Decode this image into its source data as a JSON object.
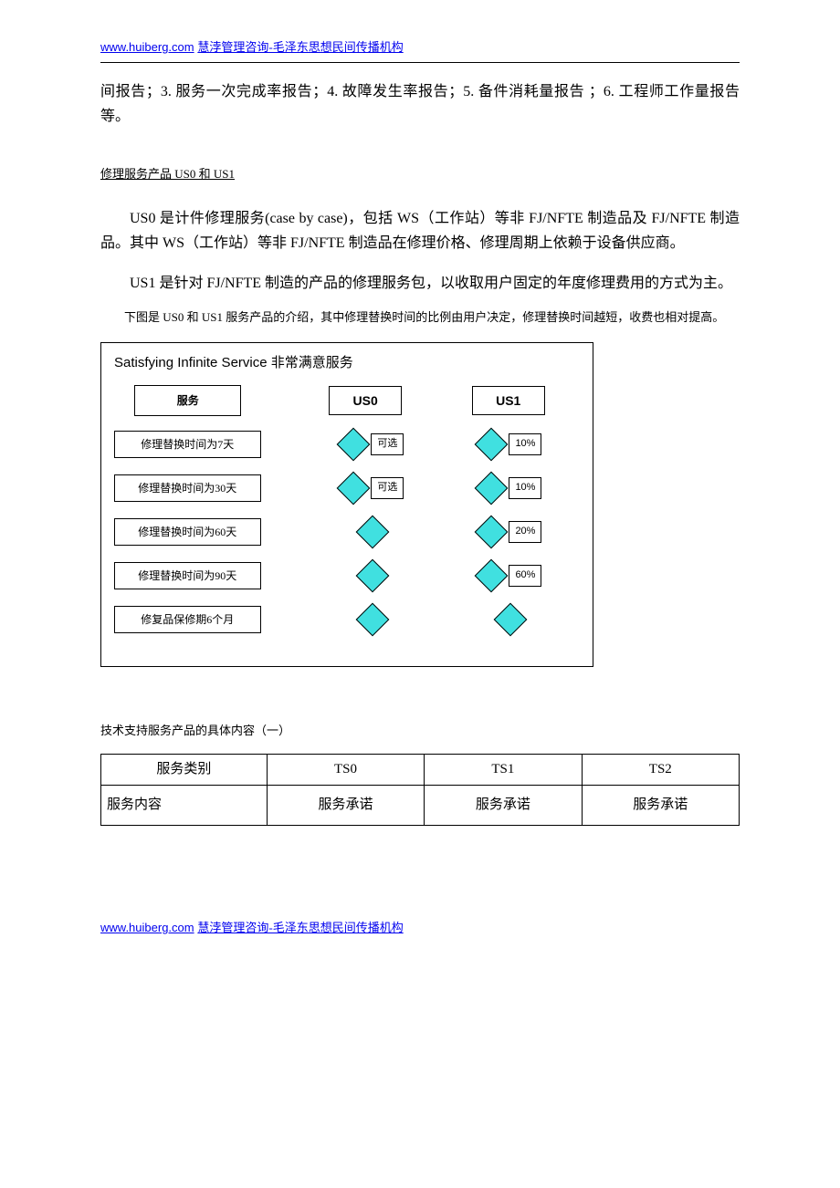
{
  "header": {
    "url": "www.huiberg.com",
    "org": "慧浡管理咨询-毛泽东思想民间传播机构"
  },
  "para1": "间报告；3. 服务一次完成率报告；4. 故障发生率报告；5. 备件消耗量报告 ；6. 工程师工作量报告等。",
  "section_sub": "修理服务产品 US0 和 US1",
  "para2": "US0 是计件修理服务(case by case)，包括 WS（工作站）等非 FJ/NFTE 制造品及 FJ/NFTE 制造品。其中 WS（工作站）等非 FJ/NFTE 制造品在修理价格、修理周期上依赖于设备供应商。",
  "para3": "US1 是针对 FJ/NFTE 制造的产品的修理服务包，以收取用户固定的年度修理费用的方式为主。",
  "note": "下图是 US0 和 US1 服务产品的介绍，其中修理替换时间的比例由用户决定，修理替换时间越短，收费也相对提高。",
  "diagram": {
    "title": "Satisfying Infinite Service   非常满意服务",
    "head_service": "服务",
    "head_col1": "US0",
    "head_col2": "US1",
    "opt_label": "可选",
    "rows": [
      {
        "label": "修理替换时间为7天",
        "c1": "opt",
        "c2": "10%"
      },
      {
        "label": "修理替换时间为30天",
        "c1": "opt",
        "c2": "10%"
      },
      {
        "label": "修理替换时间为60天",
        "c1": "",
        "c2": "20%"
      },
      {
        "label": "修理替换时间为90天",
        "c1": "",
        "c2": "60%"
      },
      {
        "label": "修复品保修期6个月",
        "c1": "",
        "c2": ""
      }
    ],
    "diamond_fill": "#40e0e0"
  },
  "table_caption": "技术支持服务产品的具体内容（一）",
  "table": {
    "headers": [
      "服务类别",
      "TS0",
      "TS1",
      "TS2"
    ],
    "row2_label": "服务内容",
    "row2_cells": [
      "服务承诺",
      "服务承诺",
      "服务承诺"
    ]
  }
}
